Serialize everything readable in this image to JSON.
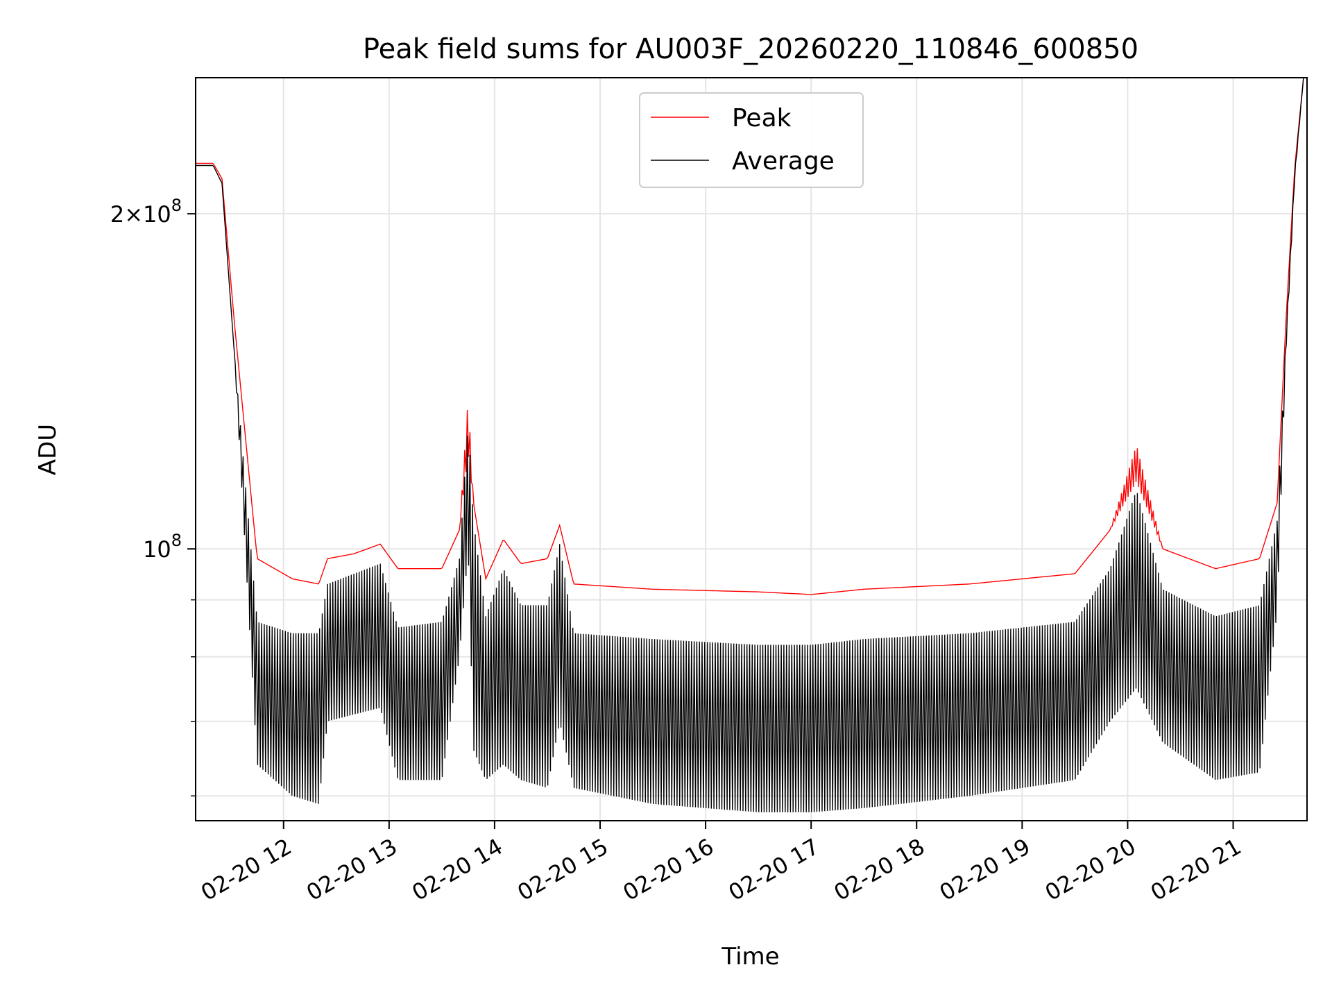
{
  "chart_data": {
    "type": "line",
    "title": "Peak field sums for AU003F_20260220_110846_600850",
    "xlabel": "Time",
    "ylabel": "ADU",
    "yscale": "log",
    "grid": true,
    "legend_position": "top-center",
    "xlim": [
      "02-20 11:10",
      "02-20 21:42"
    ],
    "ylim": [
      57000000,
      265000000
    ],
    "x_ticks": [
      "02-20 12",
      "02-20 13",
      "02-20 14",
      "02-20 15",
      "02-20 16",
      "02-20 17",
      "02-20 18",
      "02-20 19",
      "02-20 20",
      "02-20 21"
    ],
    "y_ticks": [
      {
        "value": 200000000,
        "mantissa": "2",
        "exponent": "8",
        "has_mantissa": true
      },
      {
        "value": 100000000,
        "mantissa": "",
        "exponent": "8",
        "has_mantissa": false
      }
    ],
    "y_minor_ticks": [
      60000000,
      70000000,
      80000000,
      90000000
    ],
    "series": [
      {
        "name": "Peak",
        "color": "#ff0000",
        "x": [
          "02-20 11:10",
          "02-20 11:20",
          "02-20 11:25",
          "02-20 11:32",
          "02-20 11:45",
          "02-20 12:05",
          "02-20 12:20",
          "02-20 12:25",
          "02-20 12:40",
          "02-20 12:55",
          "02-20 13:05",
          "02-20 13:30",
          "02-20 13:40",
          "02-20 13:45",
          "02-20 13:48",
          "02-20 13:55",
          "02-20 14:05",
          "02-20 14:15",
          "02-20 14:30",
          "02-20 14:37",
          "02-20 14:45",
          "02-20 15:30",
          "02-20 16:30",
          "02-20 17:00",
          "02-20 17:30",
          "02-20 18:30",
          "02-20 19:30",
          "02-20 19:50",
          "02-20 20:05",
          "02-20 20:20",
          "02-20 20:50",
          "02-20 21:15",
          "02-20 21:25",
          "02-20 21:30",
          "02-20 21:35",
          "02-20 21:40"
        ],
        "lower": [
          222000000,
          222000000,
          215000000,
          160000000,
          98000000,
          94000000,
          93000000,
          98000000,
          99000000,
          101000000,
          96000000,
          96000000,
          104000000,
          122000000,
          110000000,
          94000000,
          102000000,
          97000000,
          98000000,
          105000000,
          93000000,
          92000000,
          91500000,
          91000000,
          92000000,
          93000000,
          95000000,
          104000000,
          115000000,
          100000000,
          96000000,
          98000000,
          110000000,
          160000000,
          220000000,
          265000000
        ],
        "upper": [
          222000000,
          222000000,
          215000000,
          160000000,
          98000000,
          94000000,
          93000000,
          98000000,
          99000000,
          101000000,
          96000000,
          96000000,
          104000000,
          137000000,
          110000000,
          94000000,
          102000000,
          97000000,
          98000000,
          105000000,
          93000000,
          92000000,
          91500000,
          91000000,
          92000000,
          93000000,
          95000000,
          104000000,
          124000000,
          100000000,
          96000000,
          98000000,
          110000000,
          160000000,
          220000000,
          265000000
        ]
      },
      {
        "name": "Average",
        "color": "#000000",
        "x": [
          "02-20 11:10",
          "02-20 11:20",
          "02-20 11:25",
          "02-20 11:32",
          "02-20 11:45",
          "02-20 12:05",
          "02-20 12:20",
          "02-20 12:25",
          "02-20 12:40",
          "02-20 12:55",
          "02-20 13:05",
          "02-20 13:30",
          "02-20 13:40",
          "02-20 13:45",
          "02-20 13:48",
          "02-20 13:55",
          "02-20 14:05",
          "02-20 14:15",
          "02-20 14:30",
          "02-20 14:37",
          "02-20 14:45",
          "02-20 15:30",
          "02-20 16:30",
          "02-20 17:00",
          "02-20 17:30",
          "02-20 18:30",
          "02-20 19:30",
          "02-20 19:50",
          "02-20 20:05",
          "02-20 20:20",
          "02-20 20:50",
          "02-20 21:15",
          "02-20 21:25",
          "02-20 21:30",
          "02-20 21:35",
          "02-20 21:40"
        ],
        "lower": [
          221000000,
          221000000,
          213000000,
          150000000,
          64000000,
          60000000,
          59000000,
          70000000,
          71000000,
          72000000,
          62000000,
          62000000,
          80000000,
          100000000,
          66000000,
          62000000,
          64000000,
          62000000,
          61000000,
          70000000,
          61000000,
          59000000,
          58000000,
          58000000,
          58500000,
          60000000,
          62000000,
          70000000,
          75000000,
          67000000,
          62000000,
          63000000,
          88000000,
          150000000,
          215000000,
          265000000
        ],
        "upper": [
          221000000,
          221000000,
          213000000,
          150000000,
          86000000,
          84000000,
          84000000,
          93000000,
          95000000,
          97000000,
          85000000,
          86000000,
          98000000,
          130000000,
          106000000,
          87000000,
          96000000,
          89000000,
          89000000,
          101000000,
          84000000,
          83000000,
          82000000,
          82000000,
          83000000,
          84000000,
          86000000,
          96000000,
          113000000,
          92000000,
          87000000,
          89000000,
          106000000,
          155000000,
          218000000,
          265000000
        ]
      }
    ]
  }
}
